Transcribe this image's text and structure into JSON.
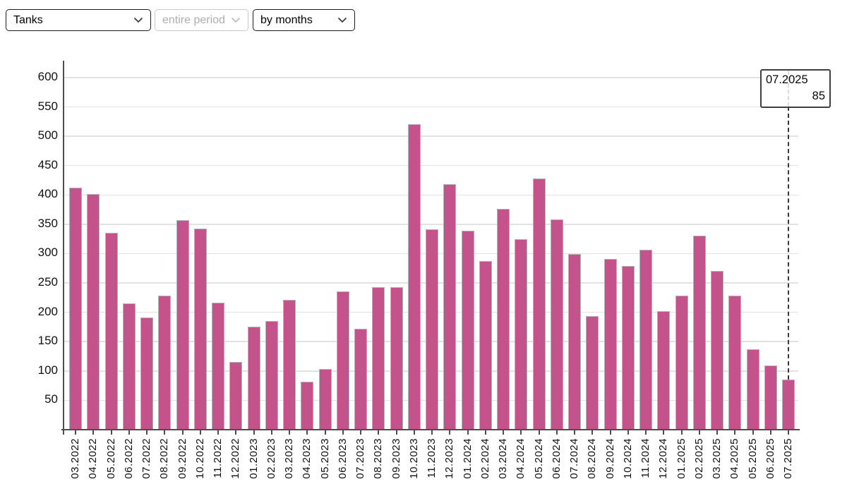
{
  "toolbar": {
    "category_select": {
      "label": "Tanks",
      "disabled": false
    },
    "period_select": {
      "label": "entire period",
      "disabled": true
    },
    "grouping_select": {
      "label": "by months",
      "disabled": false
    }
  },
  "chart_data": {
    "type": "bar",
    "title": "",
    "xlabel": "",
    "ylabel": "",
    "categories": [
      "03.2022",
      "04.2022",
      "05.2022",
      "06.2022",
      "07.2022",
      "08.2022",
      "09.2022",
      "10.2022",
      "11.2022",
      "12.2022",
      "01.2023",
      "02.2023",
      "03.2023",
      "04.2023",
      "05.2023",
      "06.2023",
      "07.2023",
      "08.2023",
      "09.2023",
      "10.2023",
      "11.2023",
      "12.2023",
      "01.2024",
      "02.2024",
      "03.2024",
      "04.2024",
      "05.2024",
      "06.2024",
      "07.2024",
      "08.2024",
      "09.2024",
      "10.2024",
      "11.2024",
      "12.2024",
      "01.2025",
      "02.2025",
      "03.2025",
      "04.2025",
      "05.2025",
      "06.2025",
      "07.2025"
    ],
    "values": [
      413,
      401,
      335,
      215,
      191,
      229,
      357,
      343,
      217,
      115,
      176,
      185,
      221,
      82,
      104,
      236,
      172,
      243,
      243,
      521,
      341,
      419,
      339,
      287,
      376,
      325,
      428,
      358,
      299,
      193,
      291,
      279,
      307,
      202,
      229,
      331,
      271,
      228,
      137,
      110,
      85
    ],
    "yticks": [
      50,
      100,
      150,
      200,
      250,
      300,
      350,
      400,
      450,
      500,
      550,
      600
    ],
    "ylim": [
      0,
      630
    ],
    "grid": true,
    "legend": false,
    "bar_color": "#c5538b"
  },
  "tooltip": {
    "date": "07.2025",
    "value": "85"
  },
  "colors": {
    "bar": "#c5538b",
    "bar_border": "#b3b3b3",
    "grid": "#e2e2e2",
    "axis": "#4d4d4d",
    "crosshair": "#3a3a3a",
    "disabled_text": "#aeaeae"
  }
}
